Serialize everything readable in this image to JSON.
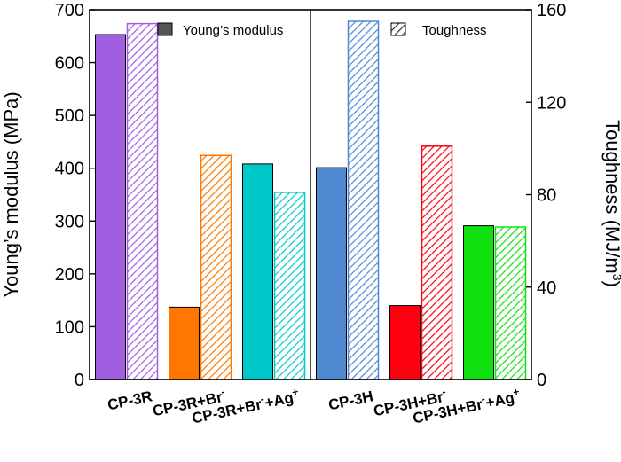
{
  "chart_data": {
    "type": "bar",
    "categories": [
      "CP-3R",
      "CP-3R+Br⁻",
      "CP-3R+Br⁻+Ag⁺",
      "CP-3H",
      "CP-3H+Br⁻",
      "CP-3H+Br⁻+Ag⁺"
    ],
    "category_parts": [
      {
        "base": "CP-3R",
        "sup1": "",
        "mid": "",
        "sup2": ""
      },
      {
        "base": "CP-3R+Br",
        "sup1": "-",
        "mid": "",
        "sup2": ""
      },
      {
        "base": "CP-3R+Br",
        "sup1": "-",
        "mid": "+Ag",
        "sup2": "+"
      },
      {
        "base": "CP-3H",
        "sup1": "",
        "mid": "",
        "sup2": ""
      },
      {
        "base": "CP-3H+Br",
        "sup1": "-",
        "mid": "",
        "sup2": ""
      },
      {
        "base": "CP-3H+Br",
        "sup1": "-",
        "mid": "+Ag",
        "sup2": "+"
      }
    ],
    "colors": [
      "#a25ee0",
      "#ff7700",
      "#00c8c8",
      "#5088d0",
      "#ff0010",
      "#10e010"
    ],
    "series": [
      {
        "name": "Young’s modulus",
        "axis": "left",
        "values": [
          653,
          137,
          408,
          401,
          140,
          291
        ],
        "fill": "solid"
      },
      {
        "name": "Toughness",
        "axis": "right",
        "values": [
          154,
          97,
          81,
          155,
          101,
          66
        ],
        "fill": "hatched"
      }
    ],
    "ylabel_left": "Young’s modulus (MPa)",
    "ylabel_right_base": "Toughness (MJ/m",
    "ylabel_right_sup": "3",
    "ylabel_right_end": ")",
    "ylim_left": [
      0,
      700
    ],
    "ylim_right": [
      0,
      160
    ],
    "yticks_left": [
      "0",
      "100",
      "200",
      "300",
      "400",
      "500",
      "600",
      "700"
    ],
    "yticks_right": [
      "0",
      "40",
      "80",
      "120",
      "160"
    ],
    "legend": {
      "placement": "top",
      "items": [
        {
          "label": "Young’s modulus",
          "swatch": "solid-gray"
        },
        {
          "label": "Toughness",
          "swatch": "hatched"
        }
      ]
    },
    "grid": false,
    "legend_colors": {
      "solid": "#555555",
      "hatch": "#333333"
    }
  }
}
